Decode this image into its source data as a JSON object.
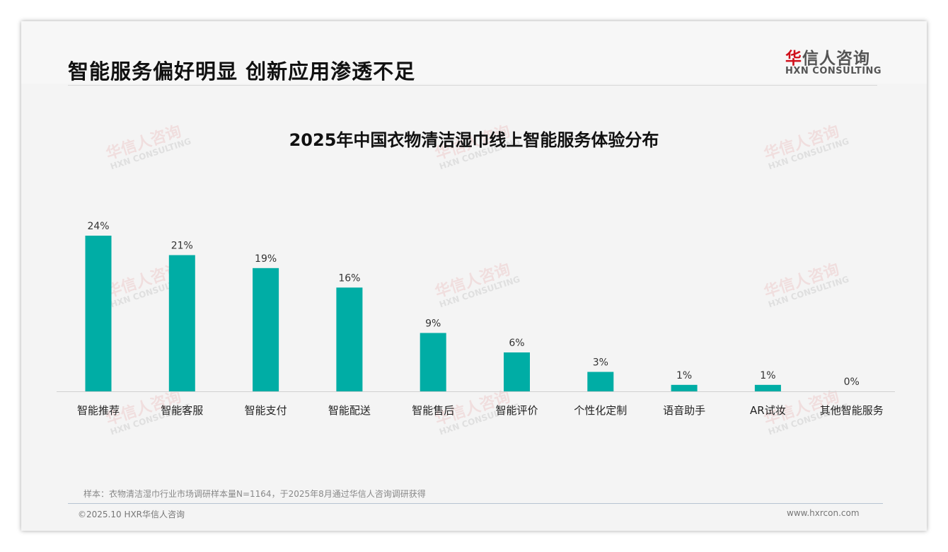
{
  "header": {
    "title": "智能服务偏好明显 创新应用渗透不足",
    "logo_cn_red": "华",
    "logo_cn": "信人咨询",
    "logo_en": "HXN CONSULTING"
  },
  "watermark": {
    "cn": "华信人咨询",
    "en": "HXN CONSULTING"
  },
  "chart_data": {
    "type": "bar",
    "title": "2025年中国衣物清洁湿巾线上智能服务体验分布",
    "categories": [
      "智能推荐",
      "智能客服",
      "智能支付",
      "智能配送",
      "智能售后",
      "智能评价",
      "个性化定制",
      "语音助手",
      "AR试妆",
      "其他智能服务"
    ],
    "values": [
      24,
      21,
      19,
      16,
      9,
      6,
      3,
      1,
      1,
      0
    ],
    "labels": [
      "24%",
      "21%",
      "19%",
      "16%",
      "9%",
      "6%",
      "3%",
      "1%",
      "1%",
      "0%"
    ],
    "unit": "%",
    "ylim": [
      0,
      26
    ],
    "xlabel": "",
    "ylabel": "",
    "grid": false,
    "legend": "none",
    "color": "#00ada5"
  },
  "footer": {
    "note": "样本：衣物清洁湿巾行业市场调研样本量N=1164，于2025年8月通过华信人咨询调研获得",
    "copyright": "©2025.10 HXR华信人咨询",
    "url": "www.hxrcon.com"
  }
}
